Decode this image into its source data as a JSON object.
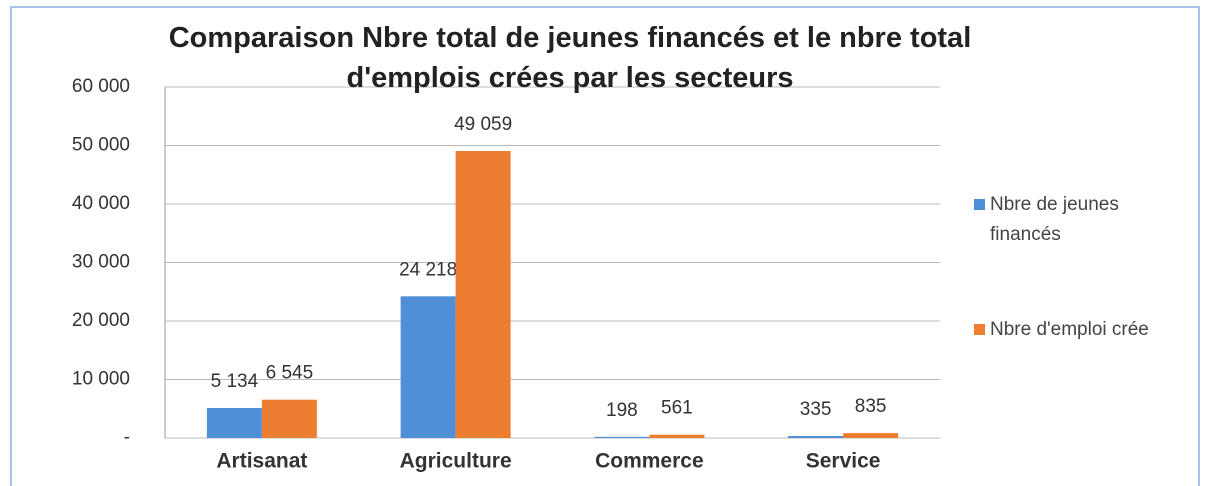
{
  "chart_data": {
    "type": "bar",
    "title": "Comparaison Nbre total de jeunes financés et le nbre total d'emplois crées par les secteurs",
    "categories": [
      "Artisanat",
      "Agriculture",
      "Commerce",
      "Service"
    ],
    "series": [
      {
        "name": "Nbre de jeunes financés",
        "color": "#4f8fd8",
        "values": [
          5134,
          24218,
          198,
          335
        ],
        "value_labels": [
          "5 134",
          "24 218",
          "198",
          "335"
        ]
      },
      {
        "name": "Nbre d'emploi crée",
        "color": "#ed7d31",
        "values": [
          6545,
          49059,
          561,
          835
        ],
        "value_labels": [
          "6 545",
          "49 059",
          "561",
          "835"
        ]
      }
    ],
    "ylim": [
      0,
      60000
    ],
    "yticks": [
      {
        "value": 0,
        "label": "-"
      },
      {
        "value": 10000,
        "label": "10 000"
      },
      {
        "value": 20000,
        "label": "20 000"
      },
      {
        "value": 30000,
        "label": "30 000"
      },
      {
        "value": 40000,
        "label": "40 000"
      },
      {
        "value": 50000,
        "label": "50 000"
      },
      {
        "value": 60000,
        "label": "60 000"
      }
    ],
    "grid": true,
    "legend": "right"
  }
}
